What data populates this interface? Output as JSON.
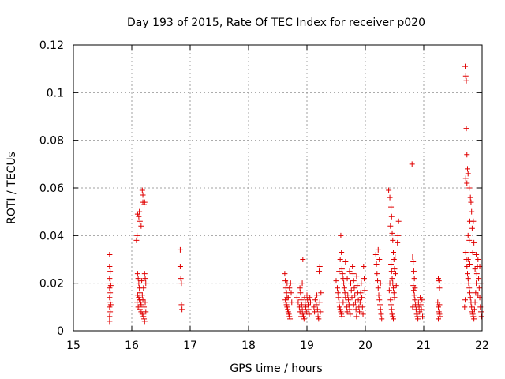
{
  "chart_data": {
    "type": "scatter",
    "title": "Day 193 of 2015, Rate Of TEC Index for receiver p020",
    "xlabel": "GPS time / hours",
    "ylabel": "ROTI / TECUs",
    "xlim": [
      15,
      22
    ],
    "ylim": [
      0,
      0.12
    ],
    "xticks": [
      "15",
      "16",
      "17",
      "18",
      "19",
      "20",
      "21",
      "22"
    ],
    "yticks": [
      "0",
      "0.02",
      "0.04",
      "0.06",
      "0.08",
      "0.1",
      "0.12"
    ],
    "grid": true,
    "marker": "+",
    "color": "#e00000",
    "points": [
      [
        15.62,
        0.032
      ],
      [
        15.62,
        0.027
      ],
      [
        15.63,
        0.025
      ],
      [
        15.62,
        0.022
      ],
      [
        15.63,
        0.02
      ],
      [
        15.62,
        0.018
      ],
      [
        15.63,
        0.016
      ],
      [
        15.62,
        0.014
      ],
      [
        15.63,
        0.012
      ],
      [
        15.62,
        0.01
      ],
      [
        15.63,
        0.008
      ],
      [
        15.62,
        0.006
      ],
      [
        15.62,
        0.004
      ],
      [
        15.64,
        0.019
      ],
      [
        15.64,
        0.011
      ],
      [
        16.08,
        0.038
      ],
      [
        16.09,
        0.04
      ],
      [
        16.1,
        0.049
      ],
      [
        16.12,
        0.048
      ],
      [
        16.13,
        0.05
      ],
      [
        16.14,
        0.046
      ],
      [
        16.16,
        0.044
      ],
      [
        16.18,
        0.059
      ],
      [
        16.19,
        0.057
      ],
      [
        16.19,
        0.054
      ],
      [
        16.21,
        0.053
      ],
      [
        16.22,
        0.054
      ],
      [
        16.1,
        0.024
      ],
      [
        16.11,
        0.022
      ],
      [
        16.12,
        0.02
      ],
      [
        16.13,
        0.018
      ],
      [
        16.14,
        0.016
      ],
      [
        16.12,
        0.014
      ],
      [
        16.13,
        0.013
      ],
      [
        16.15,
        0.012
      ],
      [
        16.16,
        0.011
      ],
      [
        16.11,
        0.01
      ],
      [
        16.14,
        0.009
      ],
      [
        16.16,
        0.008
      ],
      [
        16.18,
        0.007
      ],
      [
        16.2,
        0.006
      ],
      [
        16.21,
        0.005
      ],
      [
        16.22,
        0.004
      ],
      [
        16.18,
        0.015
      ],
      [
        16.2,
        0.018
      ],
      [
        16.22,
        0.024
      ],
      [
        16.23,
        0.022
      ],
      [
        16.24,
        0.02
      ],
      [
        16.17,
        0.021
      ],
      [
        16.19,
        0.013
      ],
      [
        16.21,
        0.01
      ],
      [
        16.23,
        0.012
      ],
      [
        16.24,
        0.008
      ],
      [
        16.09,
        0.012
      ],
      [
        16.1,
        0.015
      ],
      [
        16.83,
        0.034
      ],
      [
        16.83,
        0.027
      ],
      [
        16.84,
        0.022
      ],
      [
        16.85,
        0.02
      ],
      [
        16.85,
        0.011
      ],
      [
        16.86,
        0.009
      ],
      [
        18.62,
        0.024
      ],
      [
        18.63,
        0.021
      ],
      [
        18.64,
        0.018
      ],
      [
        18.65,
        0.016
      ],
      [
        18.66,
        0.014
      ],
      [
        18.63,
        0.013
      ],
      [
        18.64,
        0.012
      ],
      [
        18.65,
        0.011
      ],
      [
        18.66,
        0.01
      ],
      [
        18.67,
        0.009
      ],
      [
        18.68,
        0.008
      ],
      [
        18.69,
        0.007
      ],
      [
        18.7,
        0.006
      ],
      [
        18.71,
        0.005
      ],
      [
        18.68,
        0.014
      ],
      [
        18.7,
        0.018
      ],
      [
        18.72,
        0.02
      ],
      [
        18.73,
        0.016
      ],
      [
        18.74,
        0.012
      ],
      [
        18.66,
        0.02
      ],
      [
        18.83,
        0.014
      ],
      [
        18.85,
        0.012
      ],
      [
        18.87,
        0.01
      ],
      [
        18.88,
        0.018
      ],
      [
        18.89,
        0.016
      ],
      [
        18.9,
        0.013
      ],
      [
        18.91,
        0.011
      ],
      [
        18.92,
        0.009
      ],
      [
        18.93,
        0.007
      ],
      [
        18.94,
        0.006
      ],
      [
        18.95,
        0.005
      ],
      [
        18.92,
        0.02
      ],
      [
        18.93,
        0.03
      ],
      [
        18.96,
        0.014
      ],
      [
        18.97,
        0.012
      ],
      [
        18.98,
        0.01
      ],
      [
        18.99,
        0.008
      ],
      [
        19.0,
        0.015
      ],
      [
        19.01,
        0.013
      ],
      [
        19.02,
        0.011
      ],
      [
        19.03,
        0.009
      ],
      [
        19.04,
        0.007
      ],
      [
        19.05,
        0.014
      ],
      [
        19.06,
        0.012
      ],
      [
        18.88,
        0.008
      ],
      [
        18.9,
        0.006
      ],
      [
        19.12,
        0.01
      ],
      [
        19.13,
        0.008
      ],
      [
        19.14,
        0.013
      ],
      [
        19.16,
        0.011
      ],
      [
        19.18,
        0.009
      ],
      [
        19.19,
        0.006
      ],
      [
        19.2,
        0.005
      ],
      [
        19.22,
        0.012
      ],
      [
        19.23,
        0.008
      ],
      [
        19.21,
        0.025
      ],
      [
        19.22,
        0.027
      ],
      [
        19.24,
        0.016
      ],
      [
        19.17,
        0.015
      ],
      [
        19.5,
        0.021
      ],
      [
        19.52,
        0.018
      ],
      [
        19.53,
        0.016
      ],
      [
        19.54,
        0.014
      ],
      [
        19.55,
        0.012
      ],
      [
        19.56,
        0.01
      ],
      [
        19.57,
        0.009
      ],
      [
        19.58,
        0.008
      ],
      [
        19.59,
        0.007
      ],
      [
        19.6,
        0.006
      ],
      [
        19.58,
        0.04
      ],
      [
        19.57,
        0.03
      ],
      [
        19.59,
        0.033
      ],
      [
        19.6,
        0.026
      ],
      [
        19.61,
        0.024
      ],
      [
        19.62,
        0.022
      ],
      [
        19.63,
        0.02
      ],
      [
        19.64,
        0.018
      ],
      [
        19.65,
        0.016
      ],
      [
        19.66,
        0.014
      ],
      [
        19.67,
        0.012
      ],
      [
        19.68,
        0.01
      ],
      [
        19.69,
        0.008
      ],
      [
        19.7,
        0.015
      ],
      [
        19.71,
        0.013
      ],
      [
        19.72,
        0.011
      ],
      [
        19.73,
        0.009
      ],
      [
        19.74,
        0.007
      ],
      [
        19.75,
        0.02
      ],
      [
        19.76,
        0.017
      ],
      [
        19.77,
        0.014
      ],
      [
        19.78,
        0.027
      ],
      [
        19.79,
        0.024
      ],
      [
        19.8,
        0.021
      ],
      [
        19.81,
        0.018
      ],
      [
        19.82,
        0.015
      ],
      [
        19.83,
        0.012
      ],
      [
        19.84,
        0.009
      ],
      [
        19.85,
        0.006
      ],
      [
        19.86,
        0.019
      ],
      [
        19.87,
        0.016
      ],
      [
        19.88,
        0.013
      ],
      [
        19.89,
        0.01
      ],
      [
        19.9,
        0.008
      ],
      [
        19.91,
        0.012
      ],
      [
        19.92,
        0.016
      ],
      [
        19.93,
        0.02
      ],
      [
        19.94,
        0.014
      ],
      [
        19.95,
        0.01
      ],
      [
        19.96,
        0.007
      ],
      [
        19.97,
        0.027
      ],
      [
        19.98,
        0.022
      ],
      [
        19.99,
        0.017
      ],
      [
        19.66,
        0.029
      ],
      [
        19.73,
        0.025
      ],
      [
        19.55,
        0.025
      ],
      [
        19.62,
        0.012
      ],
      [
        19.69,
        0.022
      ],
      [
        19.8,
        0.011
      ],
      [
        19.85,
        0.023
      ],
      [
        20.18,
        0.032
      ],
      [
        20.19,
        0.028
      ],
      [
        20.2,
        0.024
      ],
      [
        20.21,
        0.021
      ],
      [
        20.22,
        0.018
      ],
      [
        20.23,
        0.015
      ],
      [
        20.24,
        0.013
      ],
      [
        20.25,
        0.011
      ],
      [
        20.26,
        0.009
      ],
      [
        20.27,
        0.007
      ],
      [
        20.28,
        0.005
      ],
      [
        20.22,
        0.034
      ],
      [
        20.24,
        0.03
      ],
      [
        20.26,
        0.02
      ],
      [
        20.4,
        0.059
      ],
      [
        20.42,
        0.056
      ],
      [
        20.44,
        0.052
      ],
      [
        20.45,
        0.048
      ],
      [
        20.43,
        0.044
      ],
      [
        20.46,
        0.041
      ],
      [
        20.47,
        0.038
      ],
      [
        20.48,
        0.033
      ],
      [
        20.49,
        0.03
      ],
      [
        20.44,
        0.028
      ],
      [
        20.45,
        0.025
      ],
      [
        20.46,
        0.022
      ],
      [
        20.47,
        0.02
      ],
      [
        20.48,
        0.018
      ],
      [
        20.49,
        0.016
      ],
      [
        20.5,
        0.014
      ],
      [
        20.43,
        0.013
      ],
      [
        20.44,
        0.011
      ],
      [
        20.45,
        0.009
      ],
      [
        20.46,
        0.007
      ],
      [
        20.47,
        0.006
      ],
      [
        20.48,
        0.005
      ],
      [
        20.41,
        0.017
      ],
      [
        20.42,
        0.02
      ],
      [
        20.5,
        0.026
      ],
      [
        20.51,
        0.031
      ],
      [
        20.52,
        0.024
      ],
      [
        20.53,
        0.019
      ],
      [
        20.55,
        0.037
      ],
      [
        20.56,
        0.04
      ],
      [
        20.57,
        0.046
      ],
      [
        20.8,
        0.07
      ],
      [
        20.81,
        0.031
      ],
      [
        20.82,
        0.029
      ],
      [
        20.83,
        0.025
      ],
      [
        20.84,
        0.022
      ],
      [
        20.82,
        0.019
      ],
      [
        20.83,
        0.017
      ],
      [
        20.84,
        0.015
      ],
      [
        20.85,
        0.013
      ],
      [
        20.86,
        0.011
      ],
      [
        20.87,
        0.009
      ],
      [
        20.88,
        0.007
      ],
      [
        20.89,
        0.006
      ],
      [
        20.9,
        0.005
      ],
      [
        20.91,
        0.012
      ],
      [
        20.92,
        0.01
      ],
      [
        20.93,
        0.008
      ],
      [
        20.94,
        0.014
      ],
      [
        20.95,
        0.011
      ],
      [
        20.96,
        0.009
      ],
      [
        20.97,
        0.013
      ],
      [
        20.98,
        0.006
      ],
      [
        20.81,
        0.01
      ],
      [
        20.85,
        0.018
      ],
      [
        21.25,
        0.022
      ],
      [
        21.26,
        0.021
      ],
      [
        21.27,
        0.018
      ],
      [
        21.24,
        0.012
      ],
      [
        21.25,
        0.01
      ],
      [
        21.26,
        0.008
      ],
      [
        21.27,
        0.007
      ],
      [
        21.28,
        0.006
      ],
      [
        21.25,
        0.005
      ],
      [
        21.27,
        0.011
      ],
      [
        21.71,
        0.111
      ],
      [
        21.72,
        0.107
      ],
      [
        21.73,
        0.105
      ],
      [
        21.73,
        0.085
      ],
      [
        21.74,
        0.074
      ],
      [
        21.75,
        0.068
      ],
      [
        21.76,
        0.066
      ],
      [
        21.72,
        0.064
      ],
      [
        21.74,
        0.062
      ],
      [
        21.78,
        0.06
      ],
      [
        21.8,
        0.056
      ],
      [
        21.81,
        0.054
      ],
      [
        21.82,
        0.05
      ],
      [
        21.79,
        0.046
      ],
      [
        21.76,
        0.04
      ],
      [
        21.78,
        0.038
      ],
      [
        21.83,
        0.043
      ],
      [
        21.85,
        0.046
      ],
      [
        21.86,
        0.037
      ],
      [
        21.84,
        0.033
      ],
      [
        21.72,
        0.033
      ],
      [
        21.73,
        0.03
      ],
      [
        21.74,
        0.027
      ],
      [
        21.75,
        0.024
      ],
      [
        21.76,
        0.022
      ],
      [
        21.77,
        0.02
      ],
      [
        21.78,
        0.018
      ],
      [
        21.79,
        0.016
      ],
      [
        21.8,
        0.014
      ],
      [
        21.81,
        0.012
      ],
      [
        21.82,
        0.01
      ],
      [
        21.83,
        0.008
      ],
      [
        21.84,
        0.007
      ],
      [
        21.85,
        0.006
      ],
      [
        21.86,
        0.005
      ],
      [
        21.87,
        0.009
      ],
      [
        21.88,
        0.012
      ],
      [
        21.89,
        0.016
      ],
      [
        21.9,
        0.02
      ],
      [
        21.91,
        0.024
      ],
      [
        21.92,
        0.027
      ],
      [
        21.93,
        0.03
      ],
      [
        21.94,
        0.022
      ],
      [
        21.95,
        0.018
      ],
      [
        21.96,
        0.014
      ],
      [
        21.97,
        0.01
      ],
      [
        21.98,
        0.008
      ],
      [
        21.99,
        0.006
      ],
      [
        21.7,
        0.01
      ],
      [
        21.71,
        0.013
      ],
      [
        21.76,
        0.03
      ],
      [
        21.79,
        0.028
      ],
      [
        21.88,
        0.026
      ],
      [
        21.9,
        0.032
      ],
      [
        21.93,
        0.015
      ],
      [
        21.96,
        0.027
      ],
      [
        21.98,
        0.02
      ]
    ]
  }
}
